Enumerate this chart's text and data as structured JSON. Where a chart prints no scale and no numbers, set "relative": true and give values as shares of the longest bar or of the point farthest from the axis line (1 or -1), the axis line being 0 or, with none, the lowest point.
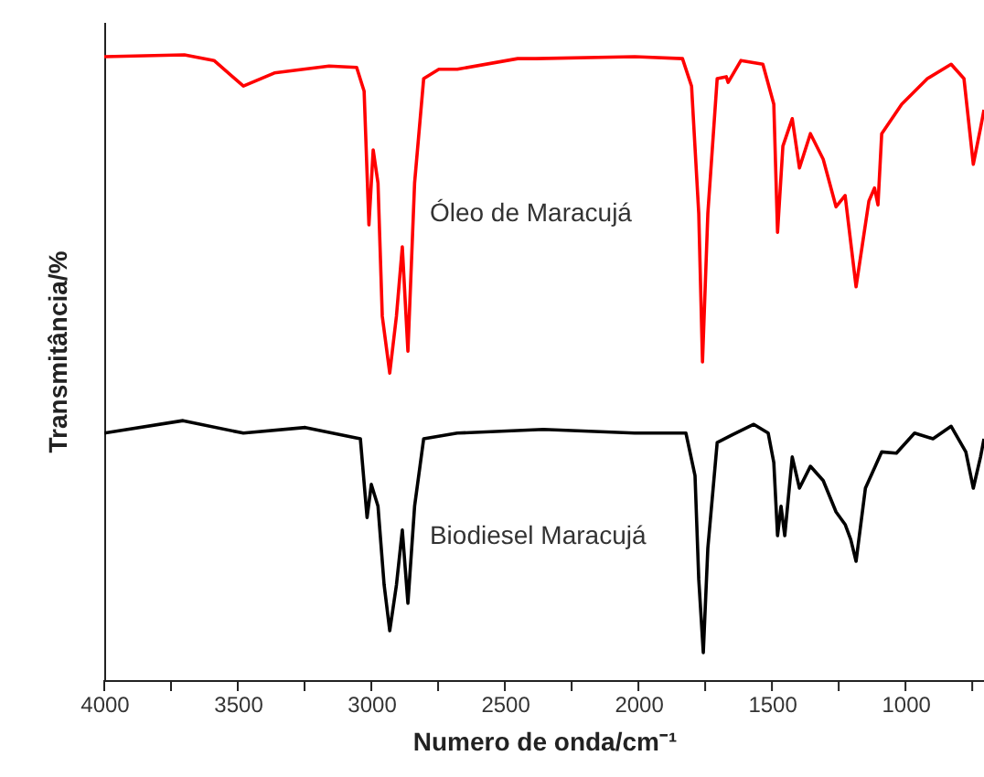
{
  "chart_data": {
    "type": "line",
    "relative": true,
    "xlabel": "Numero de onda/cm⁻¹",
    "ylabel": "Transmitância/%",
    "xlim": [
      4000,
      706
    ],
    "xticks": [
      4000,
      {
        "value": 3750,
        "label": null
      },
      3500,
      {
        "value": 3250,
        "label": null
      },
      3000,
      {
        "value": 2750,
        "label": null
      },
      2500,
      {
        "value": 2250,
        "label": null
      },
      2000,
      {
        "value": 1750,
        "label": null
      },
      1500,
      {
        "value": 1250,
        "label": null
      },
      1000,
      {
        "value": 750,
        "label": null
      }
    ],
    "grid": false,
    "marker": "none",
    "line_style": "solid",
    "series": [
      {
        "name": "Óleo de Maracujá",
        "color": "#ff0000",
        "x": [
          4000,
          3700,
          3589,
          3479,
          3363,
          3158,
          3055,
          3027,
          3009,
          2993,
          2975,
          2959,
          2931,
          2906,
          2884,
          2863,
          2838,
          2804,
          2747,
          2678,
          2452,
          2384,
          2014,
          1835,
          1801,
          1774,
          1760,
          1740,
          1705,
          1671,
          1664,
          1616,
          1534,
          1493,
          1479,
          1459,
          1424,
          1397,
          1356,
          1308,
          1260,
          1226,
          1185,
          1137,
          1116,
          1103,
          1089,
          1014,
          918,
          829,
          781,
          746,
          719,
          706
        ],
        "values": [
          0.997,
          1.0,
          0.991,
          0.95,
          0.971,
          0.982,
          0.98,
          0.942,
          0.728,
          0.848,
          0.795,
          0.582,
          0.491,
          0.582,
          0.693,
          0.526,
          0.795,
          0.962,
          0.977,
          0.977,
          0.994,
          0.994,
          0.997,
          0.994,
          0.95,
          0.746,
          0.509,
          0.746,
          0.962,
          0.965,
          0.956,
          0.991,
          0.985,
          0.921,
          0.716,
          0.854,
          0.898,
          0.819,
          0.874,
          0.833,
          0.757,
          0.775,
          0.629,
          0.766,
          0.787,
          0.76,
          0.874,
          0.921,
          0.962,
          0.985,
          0.962,
          0.825,
          0.883,
          0.912
        ]
      },
      {
        "name": "Biodiesel Maracujá",
        "color": "#000000",
        "x": [
          4000,
          3705,
          3479,
          3247,
          3041,
          3016,
          3000,
          2975,
          2952,
          2931,
          2906,
          2884,
          2863,
          2838,
          2804,
          2678,
          2356,
          2014,
          1822,
          1788,
          1774,
          1757,
          1740,
          1705,
          1650,
          1568,
          1514,
          1493,
          1479,
          1466,
          1452,
          1424,
          1397,
          1356,
          1308,
          1260,
          1226,
          1205,
          1185,
          1150,
          1089,
          1034,
          966,
          897,
          829,
          774,
          746,
          719,
          706
        ],
        "values": [
          0.395,
          0.415,
          0.395,
          0.404,
          0.386,
          0.26,
          0.313,
          0.278,
          0.152,
          0.079,
          0.152,
          0.24,
          0.123,
          0.278,
          0.386,
          0.395,
          0.401,
          0.395,
          0.395,
          0.327,
          0.161,
          0.044,
          0.211,
          0.38,
          0.392,
          0.409,
          0.395,
          0.348,
          0.231,
          0.278,
          0.231,
          0.357,
          0.307,
          0.342,
          0.319,
          0.269,
          0.249,
          0.225,
          0.19,
          0.307,
          0.365,
          0.363,
          0.395,
          0.386,
          0.406,
          0.365,
          0.307,
          0.357,
          0.386
        ]
      }
    ]
  }
}
